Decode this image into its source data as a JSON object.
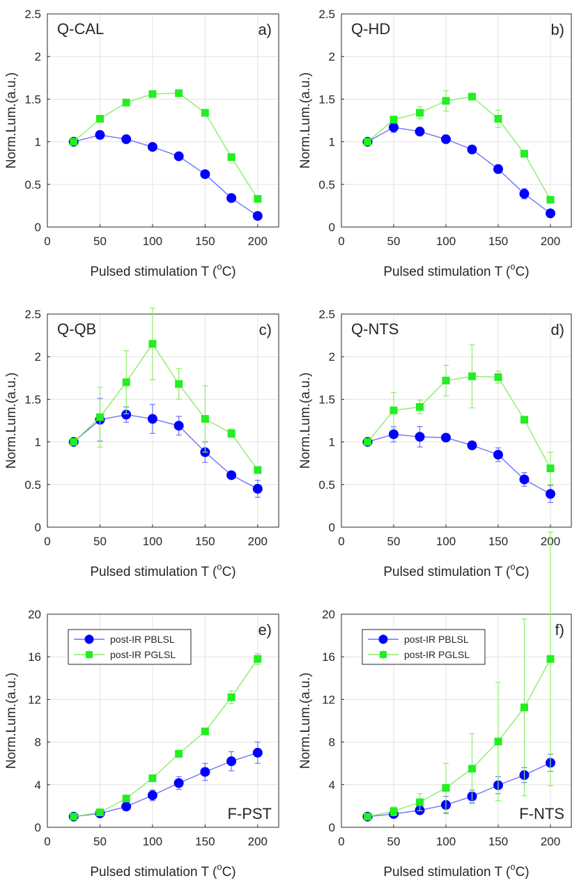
{
  "chart_data": [
    {
      "type": "line",
      "panel_name": "Q-CAL",
      "panel_letter": "a)",
      "xlabel": "Pulsed stimulation T (",
      "xlabel_sup": "o",
      "xlabel_end": "C)",
      "ylabel": "Norm.Lum.(a.u.)",
      "xlim": [
        0,
        220
      ],
      "ylim": [
        0,
        2.5
      ],
      "xticks": [
        0,
        50,
        100,
        150,
        200
      ],
      "yticks": [
        0,
        0.5,
        1,
        1.5,
        2,
        2.5
      ],
      "ytick_labels": [
        "0",
        "0.5",
        "1",
        "1.5",
        "2",
        "2.5"
      ],
      "grid": true,
      "x": [
        25,
        50,
        75,
        100,
        125,
        150,
        175,
        200
      ],
      "series": [
        {
          "marker": "circle",
          "color": "#0000ff",
          "line_color": "#6f6fff",
          "values": [
            1.0,
            1.08,
            1.03,
            0.94,
            0.83,
            0.62,
            0.34,
            0.13
          ],
          "errors": [
            0.02,
            0.02,
            0.02,
            0.02,
            0.02,
            0.02,
            0.02,
            0.02
          ]
        },
        {
          "marker": "square",
          "color": "#22ee22",
          "line_color": "#88ee66",
          "values": [
            1.0,
            1.27,
            1.46,
            1.56,
            1.57,
            1.34,
            0.82,
            0.33
          ],
          "errors": [
            0.02,
            0.02,
            0.02,
            0.02,
            0.03,
            0.02,
            0.02,
            0.02
          ]
        }
      ]
    },
    {
      "type": "line",
      "panel_name": "Q-HD",
      "panel_letter": "b)",
      "xlabel": "Pulsed stimulation T (",
      "xlabel_sup": "o",
      "xlabel_end": "C)",
      "ylabel": "Norm.Lum.(a.u.)",
      "xlim": [
        0,
        220
      ],
      "ylim": [
        0,
        2.5
      ],
      "xticks": [
        0,
        50,
        100,
        150,
        200
      ],
      "yticks": [
        0,
        0.5,
        1,
        1.5,
        2,
        2.5
      ],
      "ytick_labels": [
        "0",
        "0.5",
        "1",
        "1.5",
        "2",
        "2.5"
      ],
      "grid": true,
      "x": [
        25,
        50,
        75,
        100,
        125,
        150,
        175,
        200
      ],
      "series": [
        {
          "marker": "circle",
          "color": "#0000ff",
          "line_color": "#6f6fff",
          "values": [
            1.0,
            1.17,
            1.12,
            1.03,
            0.91,
            0.68,
            0.39,
            0.16
          ],
          "errors": [
            0.02,
            0.06,
            0.03,
            0.02,
            0.02,
            0.05,
            0.06,
            0.03
          ]
        },
        {
          "marker": "square",
          "color": "#22ee22",
          "line_color": "#88ee66",
          "values": [
            1.0,
            1.26,
            1.34,
            1.48,
            1.53,
            1.27,
            0.86,
            0.32
          ],
          "errors": [
            0.02,
            0.04,
            0.07,
            0.12,
            0.03,
            0.1,
            0.04,
            0.02
          ]
        }
      ]
    },
    {
      "type": "line",
      "panel_name": "Q-QB",
      "panel_letter": "c)",
      "xlabel": "Pulsed stimulation T (",
      "xlabel_sup": "o",
      "xlabel_end": "C)",
      "ylabel": "Norm.Lum.(a.u.)",
      "xlim": [
        0,
        220
      ],
      "ylim": [
        0,
        2.5
      ],
      "xticks": [
        0,
        50,
        100,
        150,
        200
      ],
      "yticks": [
        0,
        0.5,
        1,
        1.5,
        2,
        2.5
      ],
      "ytick_labels": [
        "0",
        "0.5",
        "1",
        "1.5",
        "2",
        "2.5"
      ],
      "grid": true,
      "x": [
        25,
        50,
        75,
        100,
        125,
        150,
        175,
        200
      ],
      "series": [
        {
          "marker": "circle",
          "color": "#0000ff",
          "line_color": "#6f6fff",
          "values": [
            1.0,
            1.26,
            1.32,
            1.27,
            1.19,
            0.88,
            0.61,
            0.45
          ],
          "errors": [
            0.02,
            0.25,
            0.09,
            0.17,
            0.11,
            0.12,
            0.03,
            0.1
          ]
        },
        {
          "marker": "square",
          "color": "#22ee22",
          "line_color": "#88ee66",
          "values": [
            1.0,
            1.29,
            1.7,
            2.15,
            1.68,
            1.27,
            1.1,
            0.67
          ],
          "errors": [
            0.02,
            0.35,
            0.37,
            0.42,
            0.18,
            0.39,
            0.05,
            0.03
          ]
        }
      ]
    },
    {
      "type": "line",
      "panel_name": "Q-NTS",
      "panel_letter": "d)",
      "xlabel": "Pulsed stimulation T (",
      "xlabel_sup": "o",
      "xlabel_end": "C)",
      "ylabel": "Norm.Lum.(a.u.)",
      "xlim": [
        0,
        220
      ],
      "ylim": [
        0,
        2.5
      ],
      "xticks": [
        0,
        50,
        100,
        150,
        200
      ],
      "yticks": [
        0,
        0.5,
        1,
        1.5,
        2,
        2.5
      ],
      "ytick_labels": [
        "0",
        "0.5",
        "1",
        "1.5",
        "2",
        "2.5"
      ],
      "grid": true,
      "x": [
        25,
        50,
        75,
        100,
        125,
        150,
        175,
        200
      ],
      "series": [
        {
          "marker": "circle",
          "color": "#0000ff",
          "line_color": "#6f6fff",
          "values": [
            1.0,
            1.09,
            1.06,
            1.05,
            0.96,
            0.85,
            0.56,
            0.39
          ],
          "errors": [
            0.02,
            0.09,
            0.12,
            0.03,
            0.03,
            0.08,
            0.08,
            0.1
          ]
        },
        {
          "marker": "square",
          "color": "#22ee22",
          "line_color": "#88ee66",
          "values": [
            1.0,
            1.37,
            1.41,
            1.72,
            1.77,
            1.76,
            1.26,
            0.69
          ],
          "errors": [
            0.02,
            0.21,
            0.08,
            0.18,
            0.37,
            0.07,
            0.03,
            0.19
          ]
        }
      ]
    },
    {
      "type": "line",
      "panel_name": "F-PST",
      "panel_letter": "e)",
      "xlabel": "Pulsed stimulation T (",
      "xlabel_sup": "o",
      "xlabel_end": "C)",
      "ylabel": "Norm.Lum.(a.u.)",
      "xlim": [
        0,
        220
      ],
      "ylim": [
        0,
        20
      ],
      "xticks": [
        0,
        50,
        100,
        150,
        200
      ],
      "yticks": [
        0,
        4,
        8,
        12,
        16,
        20
      ],
      "ytick_labels": [
        "0",
        "4",
        "8",
        "12",
        "16",
        "20"
      ],
      "grid": true,
      "legend": {
        "placement": "top-left",
        "entries": [
          "post-IR PBLSL",
          "post-IR PGLSL"
        ]
      },
      "x": [
        25,
        50,
        75,
        100,
        125,
        150,
        175,
        200
      ],
      "series": [
        {
          "name": "post-IR PBLSL",
          "marker": "circle",
          "color": "#0000ff",
          "line_color": "#6f6fff",
          "values": [
            1.0,
            1.3,
            1.95,
            3.0,
            4.15,
            5.2,
            6.2,
            7.0
          ],
          "errors": [
            0.1,
            0.2,
            0.2,
            0.5,
            0.6,
            0.8,
            0.9,
            1.0
          ]
        },
        {
          "name": "post-IR PGLSL",
          "marker": "square",
          "color": "#22ee22",
          "line_color": "#88ee66",
          "values": [
            1.0,
            1.4,
            2.7,
            4.6,
            6.9,
            9.0,
            12.2,
            15.8
          ],
          "errors": [
            0.1,
            0.1,
            0.2,
            0.2,
            0.2,
            0.2,
            0.6,
            0.5
          ]
        }
      ]
    },
    {
      "type": "line",
      "panel_name": "F-NTS",
      "panel_letter": "f)",
      "xlabel": "Pulsed stimulation T (",
      "xlabel_sup": "o",
      "xlabel_end": "C)",
      "ylabel": "Norm.Lum.(a.u.)",
      "xlim": [
        0,
        220
      ],
      "ylim": [
        0,
        20
      ],
      "xticks": [
        0,
        50,
        100,
        150,
        200
      ],
      "yticks": [
        0,
        4,
        8,
        12,
        16,
        20
      ],
      "ytick_labels": [
        "0",
        "4",
        "8",
        "12",
        "16",
        "20"
      ],
      "grid": true,
      "legend": {
        "placement": "top-left",
        "entries": [
          "post-IR PBLSL",
          "post-IR PGLSL"
        ]
      },
      "x": [
        25,
        50,
        75,
        100,
        125,
        150,
        175,
        200
      ],
      "series": [
        {
          "name": "post-IR PBLSL",
          "marker": "circle",
          "color": "#0000ff",
          "line_color": "#6f6fff",
          "values": [
            1.0,
            1.25,
            1.6,
            2.1,
            2.9,
            3.95,
            4.9,
            6.05
          ],
          "errors": [
            0.1,
            0.2,
            0.3,
            0.8,
            0.6,
            0.8,
            0.7,
            0.8
          ]
        },
        {
          "name": "post-IR PGLSL",
          "marker": "square",
          "color": "#22ee22",
          "line_color": "#88ee66",
          "values": [
            1.0,
            1.5,
            2.35,
            3.7,
            5.5,
            8.05,
            11.25,
            15.8
          ],
          "errors": [
            0.2,
            0.4,
            0.8,
            2.3,
            3.3,
            5.55,
            8.3,
            11.9
          ]
        }
      ]
    }
  ]
}
